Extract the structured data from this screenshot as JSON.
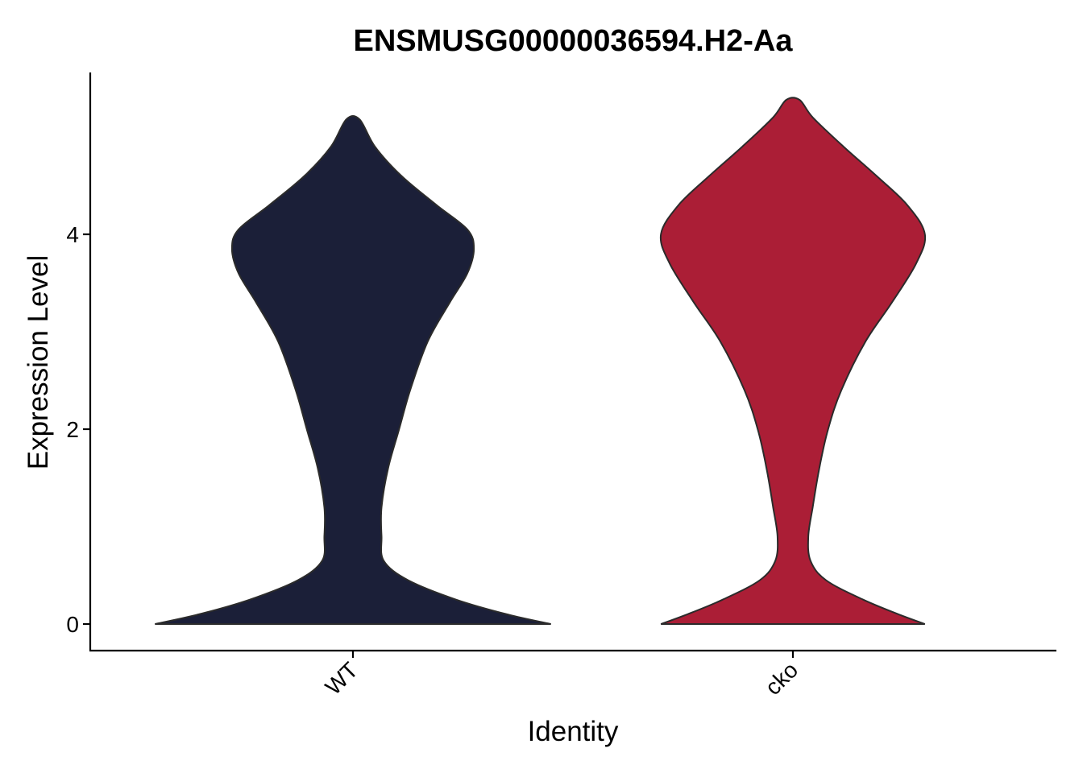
{
  "chart_data": {
    "type": "violin",
    "title": "ENSMUSG00000036594.H2-Aa",
    "xlabel": "Identity",
    "ylabel": "Expression Level",
    "ylim": [
      -0.25,
      5.7
    ],
    "yticks": [
      0,
      2,
      4
    ],
    "grid": false,
    "legend": "none",
    "categories": [
      "WT",
      "cko"
    ],
    "series": [
      {
        "category": "WT",
        "color": "#1b1f38",
        "max": 5.18,
        "density": [
          {
            "y": 0.0,
            "w": 0.9
          },
          {
            "y": 0.1,
            "w": 0.7
          },
          {
            "y": 0.25,
            "w": 0.47
          },
          {
            "y": 0.45,
            "w": 0.25
          },
          {
            "y": 0.65,
            "w": 0.14
          },
          {
            "y": 0.9,
            "w": 0.13
          },
          {
            "y": 1.2,
            "w": 0.13
          },
          {
            "y": 1.6,
            "w": 0.16
          },
          {
            "y": 2.0,
            "w": 0.21
          },
          {
            "y": 2.4,
            "w": 0.26
          },
          {
            "y": 2.9,
            "w": 0.34
          },
          {
            "y": 3.3,
            "w": 0.44
          },
          {
            "y": 3.6,
            "w": 0.52
          },
          {
            "y": 3.85,
            "w": 0.55
          },
          {
            "y": 4.05,
            "w": 0.52
          },
          {
            "y": 4.3,
            "w": 0.38
          },
          {
            "y": 4.6,
            "w": 0.22
          },
          {
            "y": 4.9,
            "w": 0.1
          },
          {
            "y": 5.18,
            "w": 0.03
          }
        ]
      },
      {
        "category": "cko",
        "color": "#ab1e36",
        "max": 5.38,
        "density": [
          {
            "y": 0.0,
            "w": 0.6
          },
          {
            "y": 0.1,
            "w": 0.48
          },
          {
            "y": 0.25,
            "w": 0.32
          },
          {
            "y": 0.45,
            "w": 0.15
          },
          {
            "y": 0.65,
            "w": 0.08
          },
          {
            "y": 0.9,
            "w": 0.07
          },
          {
            "y": 1.2,
            "w": 0.09
          },
          {
            "y": 1.6,
            "w": 0.12
          },
          {
            "y": 2.0,
            "w": 0.16
          },
          {
            "y": 2.4,
            "w": 0.22
          },
          {
            "y": 2.9,
            "w": 0.33
          },
          {
            "y": 3.3,
            "w": 0.45
          },
          {
            "y": 3.7,
            "w": 0.56
          },
          {
            "y": 4.0,
            "w": 0.6
          },
          {
            "y": 4.3,
            "w": 0.52
          },
          {
            "y": 4.6,
            "w": 0.38
          },
          {
            "y": 4.9,
            "w": 0.23
          },
          {
            "y": 5.2,
            "w": 0.09
          },
          {
            "y": 5.38,
            "w": 0.03
          }
        ]
      }
    ]
  }
}
